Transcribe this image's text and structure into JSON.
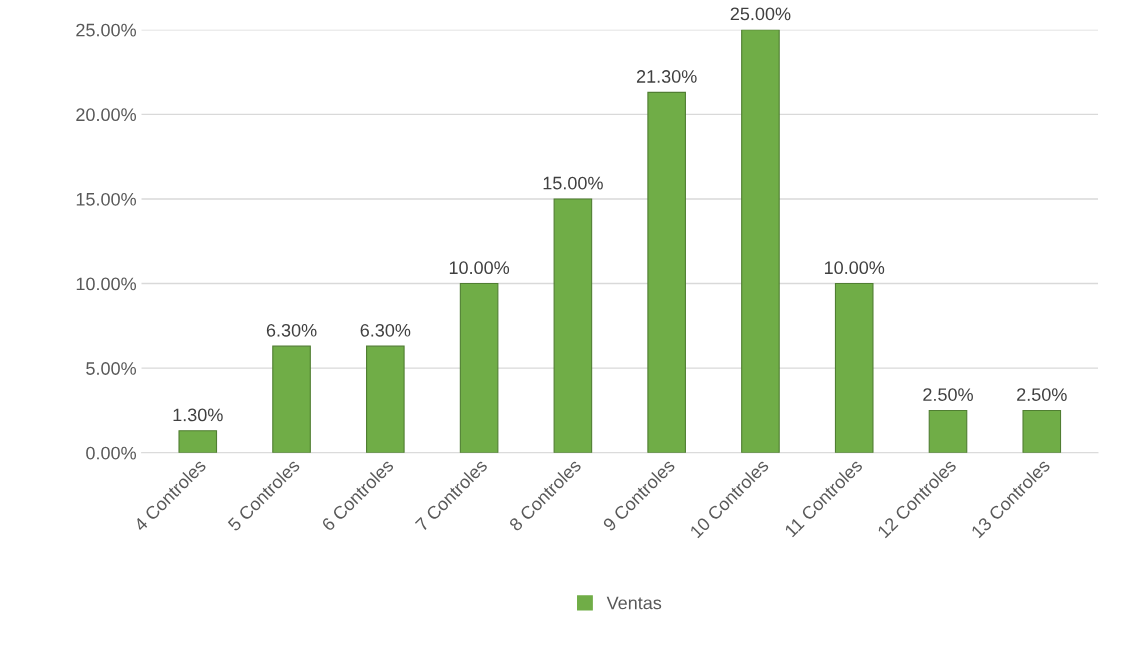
{
  "chart_data": {
    "type": "bar",
    "categories": [
      "4 Controles",
      "5 Controles",
      "6 Controles",
      "7 Controles",
      "8 Controles",
      "9 Controles",
      "10 Controles",
      "11 Controles",
      "12 Controles",
      "13 Controles"
    ],
    "series": [
      {
        "name": "Ventas",
        "color": "#70ad47",
        "values": [
          1.3,
          6.3,
          6.3,
          10.0,
          15.0,
          21.3,
          25.0,
          10.0,
          2.5,
          2.5
        ],
        "value_labels": [
          "1.30%",
          "6.30%",
          "6.30%",
          "10.00%",
          "15.00%",
          "21.30%",
          "25.00%",
          "10.00%",
          "2.50%",
          "2.50%"
        ]
      }
    ],
    "ylim": [
      0,
      25
    ],
    "yticks": [
      {
        "value": 0,
        "label": "0.00%"
      },
      {
        "value": 5,
        "label": "5.00%"
      },
      {
        "value": 10,
        "label": "10.00%"
      },
      {
        "value": 15,
        "label": "15.00%"
      },
      {
        "value": 20,
        "label": "20.00%"
      },
      {
        "value": 25,
        "label": "25.00%"
      }
    ],
    "grid": "y",
    "legend": "bottom"
  }
}
